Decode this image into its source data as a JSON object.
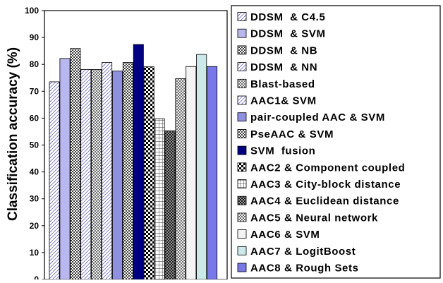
{
  "chart_data": {
    "type": "bar",
    "ylabel": "Classification accuracy (%)",
    "xlabel": "",
    "ylim": [
      0,
      100
    ],
    "y_ticks": [
      "0",
      "10",
      "20",
      "30",
      "40",
      "50",
      "60",
      "70",
      "80",
      "90",
      "100"
    ],
    "legend_placement": "right",
    "series": [
      {
        "name": "DDSM  & C4.5",
        "value": 73.5,
        "color": "#c8c8f0",
        "pattern": "diag"
      },
      {
        "name": "DDSM  & SVM",
        "value": 82.2,
        "color": "#b8b8ee",
        "pattern": "solid"
      },
      {
        "name": "DDSM  & NB",
        "value": 85.9,
        "color": "#d8d8e8",
        "pattern": "dots"
      },
      {
        "name": "DDSM  & NN",
        "value": 78.1,
        "color": "#c0c0ee",
        "pattern": "diag"
      },
      {
        "name": "Blast-based",
        "value": 78.1,
        "color": "#d0d0d0",
        "pattern": "check"
      },
      {
        "name": "AAC1& SVM",
        "value": 80.7,
        "color": "#c8c8f0",
        "pattern": "diag"
      },
      {
        "name": "pair-coupled AAC & SVM",
        "value": 77.5,
        "color": "#9090e0",
        "pattern": "solid"
      },
      {
        "name": "PseAAC & SVM",
        "value": 80.7,
        "color": "#c8c8c8",
        "pattern": "dots"
      },
      {
        "name": "SVM  fusion",
        "value": 87.4,
        "color": "#000080",
        "pattern": "solid"
      },
      {
        "name": "AAC2 & Component coupled",
        "value": 79.1,
        "color": "#ffffff",
        "pattern": "bigcheck"
      },
      {
        "name": "AAC3 & City-block distance",
        "value": 59.8,
        "color": "#ffffff",
        "pattern": "grid"
      },
      {
        "name": "AAC4 & Euclidean distance",
        "value": 55.3,
        "color": "#303030",
        "pattern": "darkcheck"
      },
      {
        "name": "AAC5 & Neural network",
        "value": 74.7,
        "color": "#d8d8d8",
        "pattern": "check"
      },
      {
        "name": "AAC6 & SVM",
        "value": 79.2,
        "color": "#f4f4f4",
        "pattern": "solid"
      },
      {
        "name": "AAC7 & LogitBoost",
        "value": 83.7,
        "color": "#cce8e8",
        "pattern": "solid"
      },
      {
        "name": "AAC8 & Rough Sets",
        "value": 79.2,
        "color": "#7878e8",
        "pattern": "solid"
      }
    ]
  }
}
